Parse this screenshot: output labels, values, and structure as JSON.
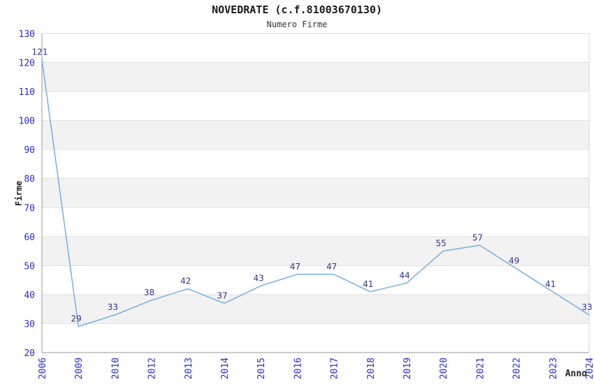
{
  "header": {
    "title": "NOVEDRATE (c.f.81003670130)",
    "subtitle": "Numero Firme"
  },
  "chart_data": {
    "type": "line",
    "title": "NOVEDRATE (c.f.81003670130)",
    "subtitle": "Numero Firme",
    "xlabel": "Anno",
    "ylabel": "Firme",
    "categories": [
      "2006",
      "2009",
      "2010",
      "2012",
      "2013",
      "2014",
      "2015",
      "2016",
      "2017",
      "2018",
      "2019",
      "2020",
      "2021",
      "2022",
      "2023",
      "2024"
    ],
    "series": [
      {
        "name": "Numero Firme",
        "values": [
          121,
          29,
          33,
          38,
          42,
          37,
          43,
          47,
          47,
          41,
          44,
          55,
          57,
          49,
          41,
          33
        ]
      }
    ],
    "ylim": [
      20,
      130
    ],
    "ytick_step": 10,
    "yticks": [
      20,
      30,
      40,
      50,
      60,
      70,
      80,
      90,
      100,
      110,
      120,
      130
    ],
    "grid": true,
    "alternating_bands": true,
    "legend_position": "none",
    "data_labels": true,
    "colors": {
      "line": "#74afe9",
      "tick_label": "#2929d8",
      "data_label": "#323296",
      "band": "#f2f2f2",
      "gridline": "#e0e0e0",
      "axis_line": "#9a9a9a",
      "border_line": "#d4d4d4",
      "title": "#1a1a1a",
      "subtitle": "#333333",
      "axis_title": "#222222"
    }
  }
}
